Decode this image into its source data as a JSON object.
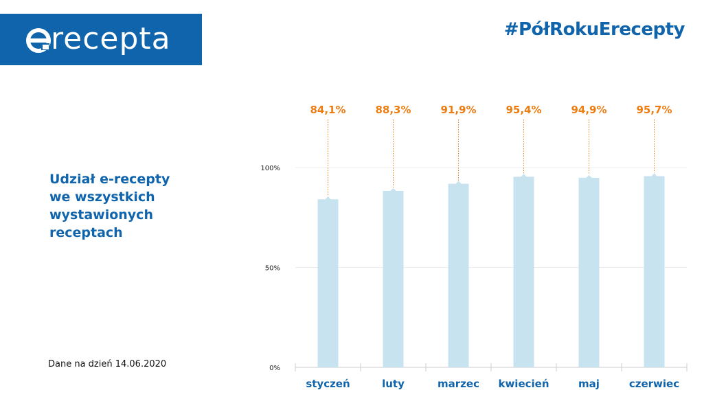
{
  "brand": {
    "logo_text": "recepta",
    "hashtag": "#PółRokuErecepty",
    "primary_color": "#0f64ab",
    "accent_color": "#ee7d11",
    "bar_color": "#c8e3f0"
  },
  "note": "Dane na dzień 14.06.2020",
  "chart_data": {
    "type": "bar",
    "title": "Udział e-recepty\nwe wszystkich\nwystawionych\nreceptach",
    "categories": [
      "styczeń",
      "luty",
      "marzec",
      "kwiecień",
      "maj",
      "czerwiec"
    ],
    "values": [
      84.1,
      88.3,
      91.9,
      95.4,
      94.9,
      95.7
    ],
    "value_labels": [
      "84,1%",
      "88,3%",
      "91,9%",
      "95,4%",
      "94,9%",
      "95,7%"
    ],
    "ylim": [
      0,
      100
    ],
    "yticks": [
      0,
      50,
      100
    ],
    "ytick_labels": [
      "0%",
      "50%",
      "100%"
    ],
    "grid": true,
    "legend": "none"
  }
}
